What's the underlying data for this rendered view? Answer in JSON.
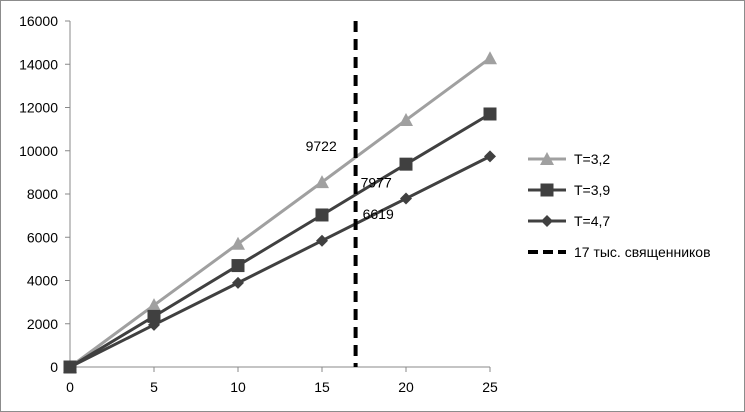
{
  "chart_data": {
    "type": "line",
    "x": [
      0,
      5,
      10,
      15,
      20,
      25
    ],
    "xlim": [
      0,
      25
    ],
    "ylim": [
      0,
      16000
    ],
    "xticks": [
      0,
      5,
      10,
      15,
      20,
      25
    ],
    "yticks": [
      0,
      2000,
      4000,
      6000,
      8000,
      10000,
      12000,
      14000,
      16000
    ],
    "grid": false,
    "legend_position": "right",
    "series": [
      {
        "name": "T=3,2",
        "color": "#a0a0a0",
        "marker": "triangle",
        "values": [
          0,
          2860,
          5700,
          8550,
          11420,
          14280
        ]
      },
      {
        "name": "T=3,9",
        "color": "#404040",
        "marker": "square",
        "values": [
          0,
          2340,
          4690,
          7030,
          9380,
          11700
        ]
      },
      {
        "name": "T=4,7",
        "color": "#404040",
        "marker": "diamond",
        "values": [
          0,
          1950,
          3890,
          5840,
          7790,
          9740
        ]
      }
    ],
    "reference_line": {
      "name": "17 тыс. священников",
      "x": 17,
      "color": "#000000",
      "style": "dashed"
    },
    "annotations": [
      {
        "text": "9722",
        "x": 17,
        "y": 9722
      },
      {
        "text": "7977",
        "x": 17,
        "y": 7977
      },
      {
        "text": "6619",
        "x": 17,
        "y": 6619
      }
    ]
  }
}
